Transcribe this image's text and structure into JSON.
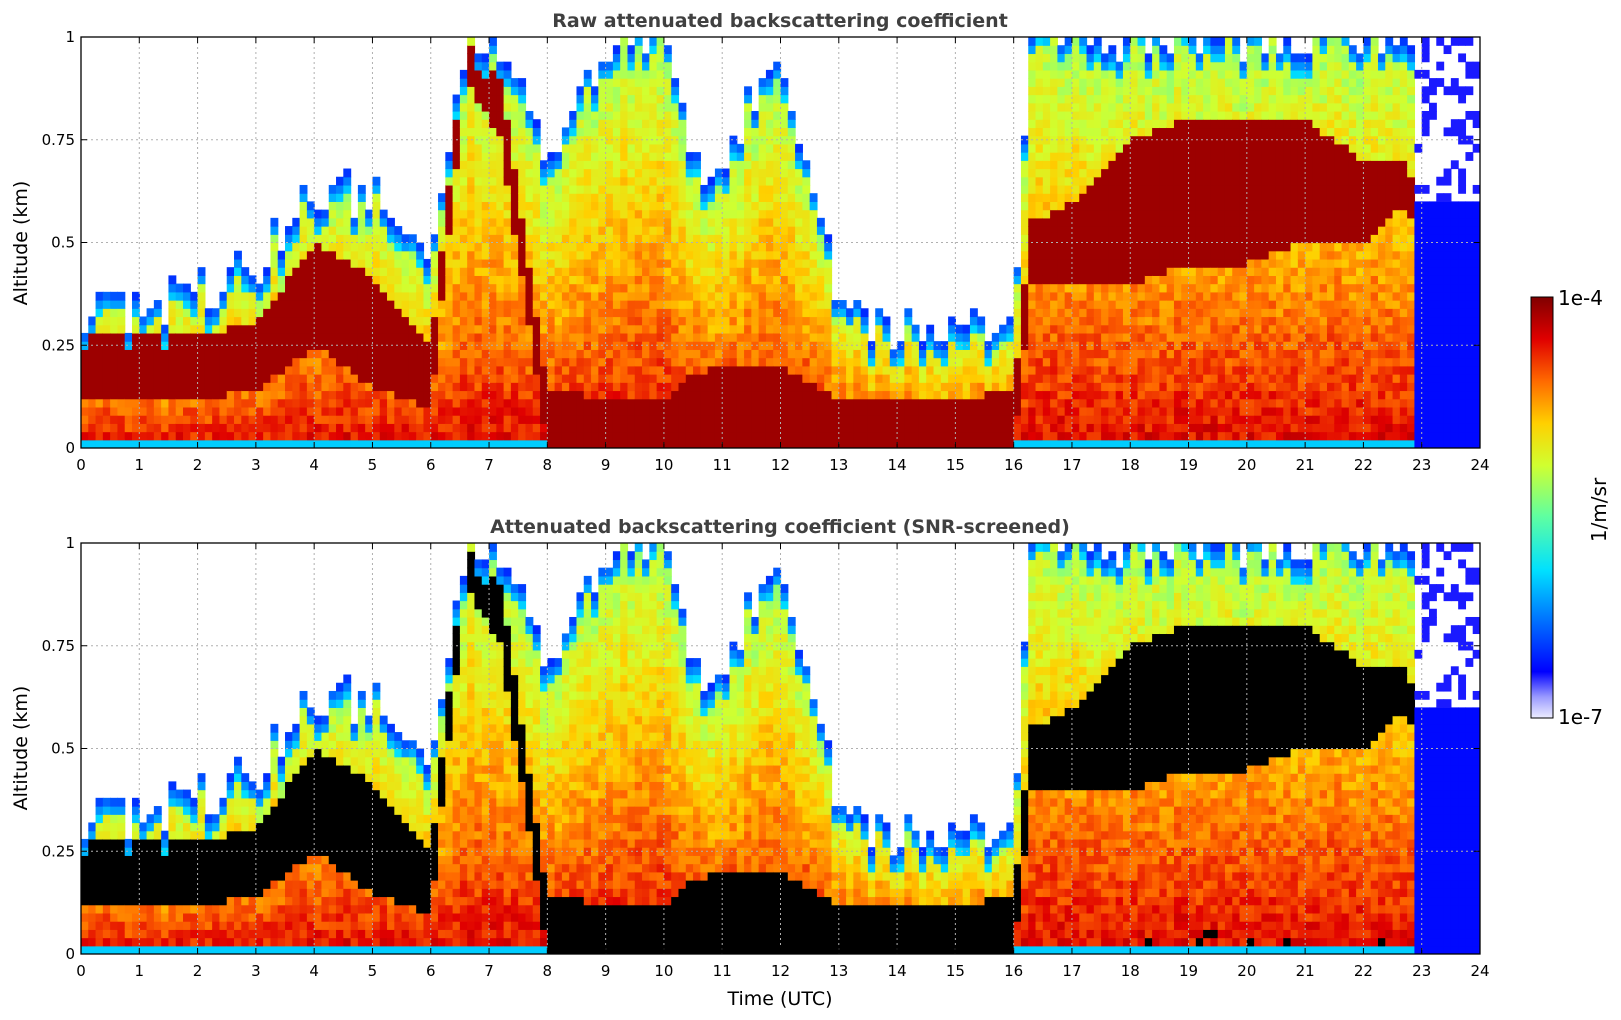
{
  "chart_data": [
    {
      "type": "heatmap",
      "title": "Raw attenuated backscattering coefficient",
      "ylabel": "Altitude (km)",
      "xlabel": "",
      "xlim": [
        0,
        24
      ],
      "ylim": [
        0,
        1
      ],
      "x_ticks": [
        "0",
        "1",
        "2",
        "3",
        "4",
        "5",
        "6",
        "7",
        "8",
        "9",
        "10",
        "11",
        "12",
        "13",
        "14",
        "15",
        "16",
        "17",
        "18",
        "19",
        "20",
        "21",
        "22",
        "23",
        "24"
      ],
      "y_ticks": [
        "0",
        "0.25",
        "0.5",
        "0.75",
        "1"
      ],
      "grid": true,
      "screened": false,
      "x": [
        0,
        1,
        2,
        3,
        4,
        5,
        6,
        6.6,
        7.2,
        8,
        9,
        10,
        10.5,
        11,
        12,
        13,
        14,
        15,
        16,
        16.3,
        17,
        18,
        19,
        20,
        21,
        22,
        22.8,
        23,
        24
      ],
      "cloud_top_km": [
        0.35,
        0.32,
        0.38,
        0.45,
        0.62,
        0.62,
        0.42,
        1.0,
        1.0,
        0.65,
        1.0,
        1.0,
        0.68,
        0.7,
        1.0,
        0.33,
        0.3,
        0.3,
        0.32,
        1.0,
        1.0,
        1.0,
        1.0,
        1.0,
        1.0,
        1.0,
        1.0,
        1.0,
        1.0
      ],
      "max_layer_base_km": [
        0.12,
        0.12,
        0.12,
        0.14,
        0.25,
        0.15,
        0.1,
        0.9,
        0.75,
        0.0,
        0.0,
        0.0,
        0.0,
        0.0,
        0.0,
        0.0,
        0.0,
        0.0,
        0.0,
        0.4,
        0.4,
        0.4,
        0.45,
        0.45,
        0.5,
        0.5,
        0.6,
        0.0,
        0.0
      ],
      "max_layer_top_km": [
        0.28,
        0.27,
        0.28,
        0.3,
        0.5,
        0.42,
        0.25,
        1.0,
        0.9,
        0.15,
        0.12,
        0.12,
        0.18,
        0.2,
        0.2,
        0.12,
        0.12,
        0.12,
        0.14,
        0.55,
        0.6,
        0.75,
        0.8,
        0.8,
        0.8,
        0.7,
        0.7,
        0.0,
        0.0
      ],
      "colorbar": {
        "min_label": "1e-7",
        "max_label": "1e-4",
        "label": "1/m/sr",
        "colormap": "jet",
        "scale": "log"
      }
    },
    {
      "type": "heatmap",
      "title": "Attenuated backscattering coefficient (SNR-screened)",
      "ylabel": "Altitude (km)",
      "xlabel": "Time (UTC)",
      "xlim": [
        0,
        24
      ],
      "ylim": [
        0,
        1
      ],
      "x_ticks": [
        "0",
        "1",
        "2",
        "3",
        "4",
        "5",
        "6",
        "7",
        "8",
        "9",
        "10",
        "11",
        "12",
        "13",
        "14",
        "15",
        "16",
        "17",
        "18",
        "19",
        "20",
        "21",
        "22",
        "23",
        "24"
      ],
      "y_ticks": [
        "0",
        "0.25",
        "0.5",
        "0.75",
        "1"
      ],
      "grid": true,
      "screened": true,
      "screened_color": "#000000"
    }
  ],
  "colors": {
    "title": "#404040",
    "grid": "#b0b0b0",
    "screened": "#000000",
    "background": "#ffffff"
  }
}
